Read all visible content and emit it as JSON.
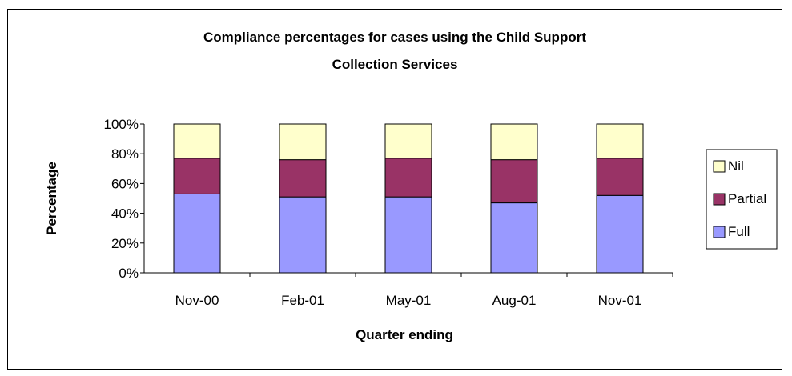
{
  "chart_data": {
    "type": "bar",
    "stacked": true,
    "percent_stacked": true,
    "title_lines": [
      "Compliance percentages for cases using the Child Support",
      "Collection Services"
    ],
    "xlabel": "Quarter ending",
    "ylabel": "Percentage",
    "categories": [
      "Nov-00",
      "Feb-01",
      "May-01",
      "Aug-01",
      "Nov-01"
    ],
    "ylim": [
      0,
      100
    ],
    "y_ticks": [
      "0%",
      "20%",
      "40%",
      "60%",
      "80%",
      "100%"
    ],
    "grid": false,
    "legend_position": "right",
    "series": [
      {
        "name": "Full",
        "color": "#9999ff",
        "values": [
          53,
          51,
          51,
          47,
          52
        ]
      },
      {
        "name": "Partial",
        "color": "#993366",
        "values": [
          24,
          25,
          26,
          29,
          25
        ]
      },
      {
        "name": "Nil",
        "color": "#ffffcc",
        "values": [
          23,
          24,
          23,
          24,
          23
        ]
      }
    ],
    "legend_order": [
      "Nil",
      "Partial",
      "Full"
    ]
  }
}
